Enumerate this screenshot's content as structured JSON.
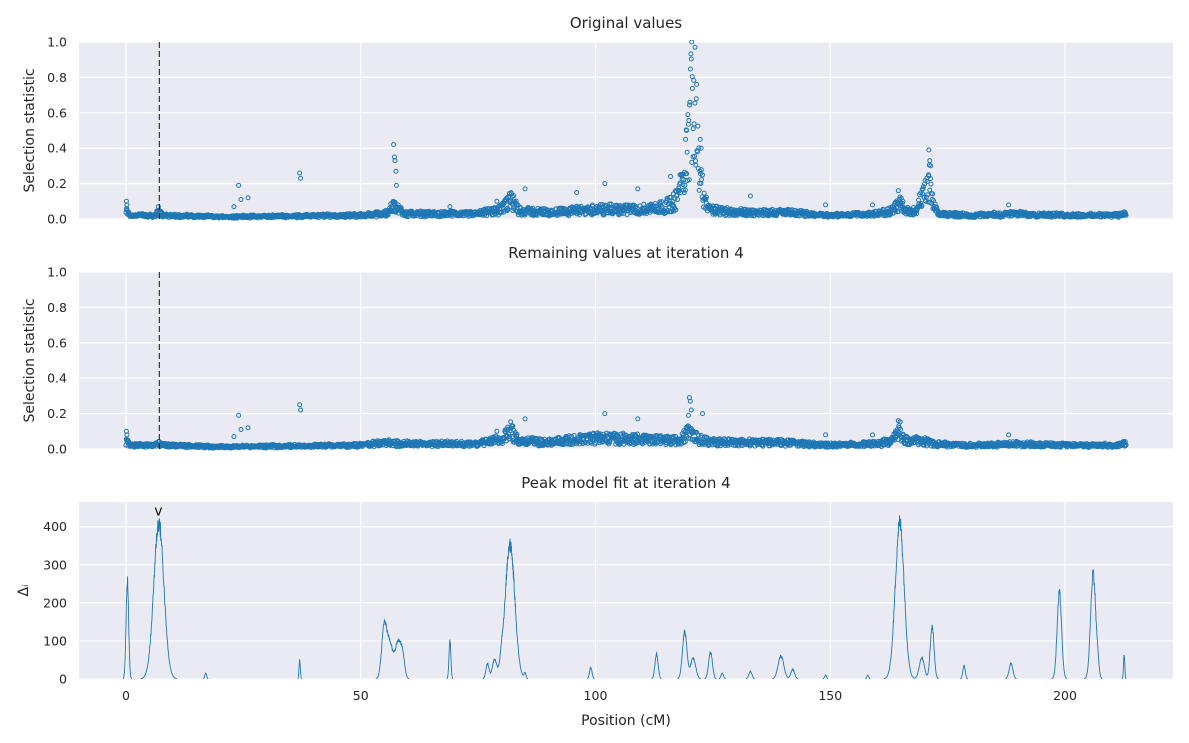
{
  "chart_data": [
    {
      "type": "scatter",
      "title": "Original values",
      "ylabel": "Selection statistic",
      "xlabel": "",
      "xlim": [
        -10,
        223
      ],
      "ylim": [
        0,
        1.0
      ],
      "xticks": [
        0,
        50,
        100,
        150,
        200
      ],
      "yticks": [
        0.0,
        0.2,
        0.4,
        0.6,
        0.8,
        1.0
      ],
      "ytick_labels": [
        "0.0",
        "0.2",
        "0.4",
        "0.6",
        "0.8",
        "1.0"
      ],
      "grid": true,
      "marker_color": "#1f77b4",
      "marker": "open-circle",
      "vline": {
        "x": 7.1,
        "style": "dashed",
        "color": "#111111"
      },
      "x_extent": [
        0,
        213
      ],
      "baseline": [
        [
          0,
          0.05
        ],
        [
          1,
          0.02
        ],
        [
          6,
          0.02
        ],
        [
          7,
          0.04
        ],
        [
          8,
          0.02
        ],
        [
          20,
          0.01
        ],
        [
          35,
          0.015
        ],
        [
          50,
          0.02
        ],
        [
          55,
          0.03
        ],
        [
          57,
          0.08
        ],
        [
          60,
          0.03
        ],
        [
          65,
          0.03
        ],
        [
          75,
          0.03
        ],
        [
          80,
          0.06
        ],
        [
          82,
          0.12
        ],
        [
          84,
          0.05
        ],
        [
          90,
          0.04
        ],
        [
          100,
          0.06
        ],
        [
          110,
          0.06
        ],
        [
          115,
          0.08
        ],
        [
          117,
          0.12
        ],
        [
          118,
          0.2
        ],
        [
          119,
          0.35
        ],
        [
          120,
          0.6
        ],
        [
          120.6,
          0.9
        ],
        [
          121,
          0.95
        ],
        [
          121.5,
          0.75
        ],
        [
          122,
          0.4
        ],
        [
          123,
          0.15
        ],
        [
          124,
          0.06
        ],
        [
          130,
          0.04
        ],
        [
          140,
          0.04
        ],
        [
          150,
          0.02
        ],
        [
          160,
          0.03
        ],
        [
          163,
          0.05
        ],
        [
          165,
          0.1
        ],
        [
          166,
          0.05
        ],
        [
          168,
          0.05
        ],
        [
          170,
          0.15
        ],
        [
          171,
          0.25
        ],
        [
          172,
          0.08
        ],
        [
          173,
          0.03
        ],
        [
          180,
          0.02
        ],
        [
          190,
          0.03
        ],
        [
          200,
          0.02
        ],
        [
          210,
          0.02
        ],
        [
          213,
          0.03
        ]
      ],
      "outliers": [
        [
          0.1,
          0.1
        ],
        [
          0.2,
          0.08
        ],
        [
          6.9,
          0.07
        ],
        [
          23,
          0.07
        ],
        [
          24,
          0.19
        ],
        [
          24.5,
          0.11
        ],
        [
          26,
          0.12
        ],
        [
          37,
          0.26
        ],
        [
          37.2,
          0.23
        ],
        [
          57,
          0.42
        ],
        [
          57.2,
          0.35
        ],
        [
          57.3,
          0.33
        ],
        [
          57.5,
          0.27
        ],
        [
          57.6,
          0.19
        ],
        [
          69,
          0.07
        ],
        [
          79,
          0.1
        ],
        [
          85,
          0.17
        ],
        [
          96,
          0.15
        ],
        [
          102,
          0.2
        ],
        [
          109,
          0.17
        ],
        [
          116,
          0.24
        ],
        [
          120.5,
          1.0
        ],
        [
          121.2,
          0.97
        ],
        [
          119.2,
          0.45
        ],
        [
          119.4,
          0.5
        ],
        [
          122.3,
          0.45
        ],
        [
          122.5,
          0.4
        ],
        [
          133,
          0.13
        ],
        [
          149,
          0.08
        ],
        [
          159,
          0.08
        ],
        [
          164.5,
          0.16
        ],
        [
          171,
          0.39
        ],
        [
          171.2,
          0.33
        ],
        [
          171.4,
          0.3
        ],
        [
          188,
          0.08
        ]
      ]
    },
    {
      "type": "scatter",
      "title": "Remaining values at iteration 4",
      "ylabel": "Selection statistic",
      "xlabel": "",
      "xlim": [
        -10,
        223
      ],
      "ylim": [
        0,
        1.0
      ],
      "xticks": [
        0,
        50,
        100,
        150,
        200
      ],
      "yticks": [
        0.0,
        0.2,
        0.4,
        0.6,
        0.8,
        1.0
      ],
      "ytick_labels": [
        "0.0",
        "0.2",
        "0.4",
        "0.6",
        "0.8",
        "1.0"
      ],
      "grid": true,
      "marker_color": "#1f77b4",
      "marker": "open-circle",
      "vline": {
        "x": 7.1,
        "style": "dashed",
        "color": "#111111"
      },
      "x_extent": [
        0,
        213
      ],
      "baseline": [
        [
          0,
          0.05
        ],
        [
          1,
          0.02
        ],
        [
          6,
          0.02
        ],
        [
          7,
          0.03
        ],
        [
          8,
          0.02
        ],
        [
          20,
          0.01
        ],
        [
          35,
          0.015
        ],
        [
          50,
          0.02
        ],
        [
          55,
          0.04
        ],
        [
          60,
          0.03
        ],
        [
          65,
          0.03
        ],
        [
          75,
          0.03
        ],
        [
          80,
          0.06
        ],
        [
          82,
          0.12
        ],
        [
          84,
          0.05
        ],
        [
          90,
          0.04
        ],
        [
          100,
          0.07
        ],
        [
          110,
          0.06
        ],
        [
          115,
          0.06
        ],
        [
          118,
          0.05
        ],
        [
          120,
          0.12
        ],
        [
          121,
          0.08
        ],
        [
          123,
          0.05
        ],
        [
          130,
          0.04
        ],
        [
          140,
          0.04
        ],
        [
          150,
          0.02
        ],
        [
          160,
          0.03
        ],
        [
          163,
          0.05
        ],
        [
          165,
          0.12
        ],
        [
          166,
          0.05
        ],
        [
          170,
          0.05
        ],
        [
          172,
          0.03
        ],
        [
          180,
          0.02
        ],
        [
          190,
          0.03
        ],
        [
          200,
          0.02
        ],
        [
          210,
          0.02
        ],
        [
          213,
          0.03
        ]
      ],
      "outliers": [
        [
          0.1,
          0.1
        ],
        [
          0.2,
          0.08
        ],
        [
          23,
          0.07
        ],
        [
          24,
          0.19
        ],
        [
          24.5,
          0.11
        ],
        [
          26,
          0.12
        ],
        [
          37,
          0.25
        ],
        [
          37.2,
          0.22
        ],
        [
          79,
          0.1
        ],
        [
          85,
          0.17
        ],
        [
          102,
          0.2
        ],
        [
          109,
          0.17
        ],
        [
          120,
          0.29
        ],
        [
          120.2,
          0.27
        ],
        [
          120.4,
          0.22
        ],
        [
          119.8,
          0.19
        ],
        [
          122.8,
          0.2
        ],
        [
          149,
          0.08
        ],
        [
          159,
          0.08
        ],
        [
          164.5,
          0.16
        ],
        [
          188,
          0.08
        ]
      ]
    },
    {
      "type": "line",
      "title": "Peak model fit at iteration 4",
      "ylabel": "Δᵢ",
      "xlabel": "Position (cM)",
      "xlim": [
        -10,
        223
      ],
      "ylim": [
        0,
        465
      ],
      "xticks": [
        0,
        50,
        100,
        150,
        200
      ],
      "yticks": [
        0,
        100,
        200,
        300,
        400
      ],
      "ytick_labels": [
        "0",
        "100",
        "200",
        "300",
        "400"
      ],
      "grid": true,
      "line_color": "#1f77b4",
      "marker_annotation": {
        "x": 6.9,
        "y": 430,
        "text": "v"
      },
      "spikes": [
        [
          0.3,
          260,
          0.4
        ],
        [
          7.0,
          410,
          1.6
        ],
        [
          17,
          15,
          0.3
        ],
        [
          37,
          50,
          0.2
        ],
        [
          55,
          135,
          0.8
        ],
        [
          56.2,
          90,
          0.9
        ],
        [
          58,
          100,
          1.0
        ],
        [
          59,
          40,
          0.6
        ],
        [
          69,
          100,
          0.3
        ],
        [
          77,
          40,
          0.5
        ],
        [
          78.5,
          50,
          0.7
        ],
        [
          80,
          30,
          0.5
        ],
        [
          81.8,
          355,
          1.5
        ],
        [
          85,
          15,
          0.3
        ],
        [
          99,
          30,
          0.4
        ],
        [
          113,
          65,
          0.5
        ],
        [
          119,
          125,
          0.7
        ],
        [
          120.8,
          55,
          0.8
        ],
        [
          124.5,
          70,
          0.6
        ],
        [
          127,
          15,
          0.4
        ],
        [
          133,
          20,
          0.5
        ],
        [
          139.5,
          60,
          0.9
        ],
        [
          142,
          25,
          0.6
        ],
        [
          149,
          10,
          0.3
        ],
        [
          158,
          10,
          0.3
        ],
        [
          164.8,
          410,
          1.4
        ],
        [
          169.5,
          55,
          0.8
        ],
        [
          171.7,
          140,
          0.6
        ],
        [
          178.5,
          35,
          0.4
        ],
        [
          188.5,
          40,
          0.6
        ],
        [
          198.8,
          225,
          0.7
        ],
        [
          206,
          280,
          0.8
        ],
        [
          207,
          30,
          0.4
        ],
        [
          212.6,
          65,
          0.2
        ]
      ]
    }
  ]
}
